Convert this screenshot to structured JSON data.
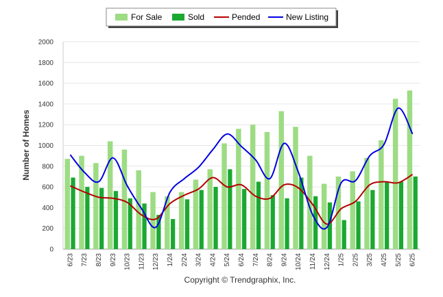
{
  "chart_data": {
    "type": "bar",
    "ylabel": "Number of Homes",
    "ylim": [
      0,
      2000
    ],
    "yticks": [
      0,
      200,
      400,
      600,
      800,
      1000,
      1200,
      1400,
      1600,
      1800,
      2000
    ],
    "grid": true,
    "legend_position": "top-center",
    "categories": [
      "6/23",
      "7/23",
      "8/23",
      "9/23",
      "10/23",
      "11/23",
      "12/23",
      "1/24",
      "2/24",
      "3/24",
      "4/24",
      "5/24",
      "6/24",
      "7/24",
      "8/24",
      "9/24",
      "10/24",
      "11/24",
      "12/24",
      "1/25",
      "2/25",
      "3/25",
      "4/25",
      "5/25",
      "6/25"
    ],
    "series": [
      {
        "name": "For Sale",
        "type": "bar",
        "color": "#9ddc84",
        "values": [
          870,
          900,
          830,
          1040,
          960,
          760,
          550,
          510,
          550,
          670,
          770,
          1020,
          1160,
          1200,
          1130,
          1330,
          1180,
          900,
          630,
          700,
          750,
          880,
          1050,
          1450,
          1530
        ]
      },
      {
        "name": "Sold",
        "type": "bar",
        "color": "#1aa832",
        "values": [
          690,
          600,
          590,
          560,
          490,
          440,
          330,
          290,
          480,
          570,
          600,
          770,
          580,
          650,
          520,
          490,
          690,
          510,
          450,
          280,
          460,
          570,
          650,
          650,
          700
        ]
      },
      {
        "name": "Pended",
        "type": "line",
        "color": "#b40000",
        "values": [
          610,
          550,
          500,
          490,
          450,
          330,
          290,
          440,
          520,
          580,
          690,
          600,
          620,
          510,
          490,
          620,
          590,
          430,
          240,
          390,
          460,
          620,
          650,
          640,
          720
        ]
      },
      {
        "name": "New Listing",
        "type": "line",
        "color": "#0000e0",
        "values": [
          910,
          740,
          650,
          880,
          610,
          390,
          210,
          550,
          680,
          790,
          960,
          1110,
          990,
          860,
          680,
          1020,
          740,
          330,
          210,
          640,
          660,
          900,
          1010,
          1360,
          1110
        ]
      }
    ],
    "annotation": "Copyright © Trendgraphix, Inc."
  }
}
